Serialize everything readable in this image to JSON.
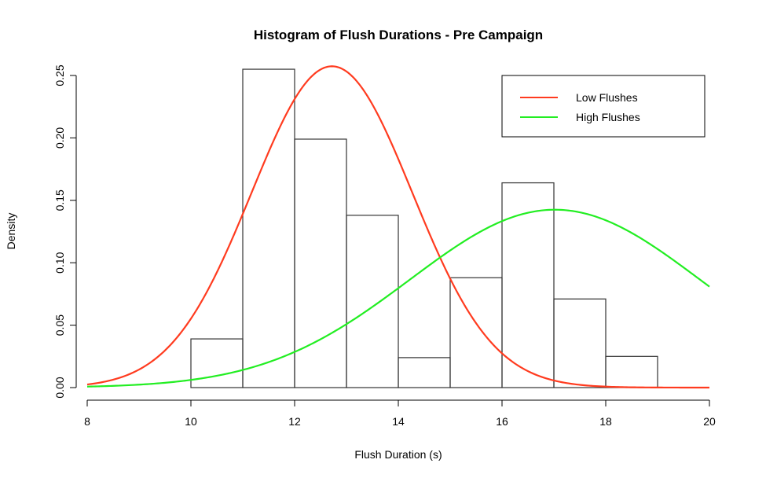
{
  "chart_data": {
    "type": "bar",
    "title": "Histogram of Flush Durations - Pre Campaign",
    "xlabel": "Flush Duration (s)",
    "ylabel": "Density",
    "xlim": [
      8,
      20
    ],
    "ylim": [
      0,
      0.25
    ],
    "x_ticks": [
      "8",
      "10",
      "12",
      "14",
      "16",
      "18",
      "20"
    ],
    "y_ticks": [
      "0.00",
      "0.05",
      "0.10",
      "0.15",
      "0.20",
      "0.25"
    ],
    "grid": false,
    "bins": [
      {
        "start": 10,
        "end": 11,
        "density": 0.039
      },
      {
        "start": 11,
        "end": 12,
        "density": 0.255
      },
      {
        "start": 12,
        "end": 13,
        "density": 0.199
      },
      {
        "start": 13,
        "end": 14,
        "density": 0.138
      },
      {
        "start": 14,
        "end": 15,
        "density": 0.024
      },
      {
        "start": 15,
        "end": 16,
        "density": 0.088
      },
      {
        "start": 16,
        "end": 17,
        "density": 0.164
      },
      {
        "start": 17,
        "end": 18,
        "density": 0.071
      },
      {
        "start": 18,
        "end": 19,
        "density": 0.025
      }
    ],
    "series": [
      {
        "name": "Low Flushes",
        "type": "normal_density",
        "mean": 12.72,
        "sd": 1.55,
        "color": "#ff3b1f"
      },
      {
        "name": "High Flushes",
        "type": "normal_density",
        "mean": 17.02,
        "sd": 2.8,
        "color": "#22ee22"
      }
    ],
    "legend_position": "top-right"
  }
}
